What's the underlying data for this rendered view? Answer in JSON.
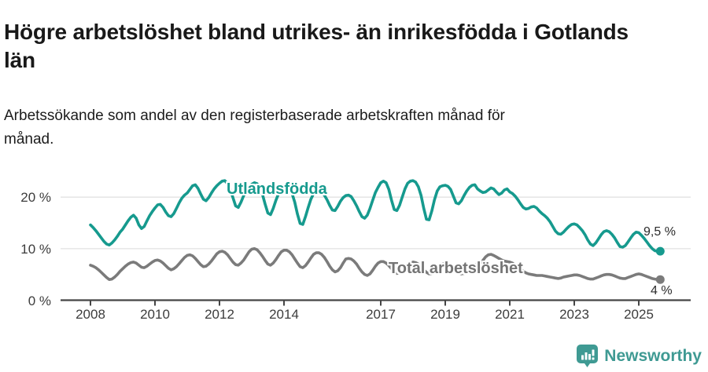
{
  "header": {
    "title": "Högre arbetslöshet bland utrikes- än inrikesfödda i Gotlands län",
    "subtitle": "Arbetssökande som andel av den registerbaserade arbetskraften månad för månad."
  },
  "footer": {
    "brand": "Newsworthy",
    "logo_icon": "bar-chart-speech-bubble-icon",
    "brand_color": "#3f9a93"
  },
  "colors": {
    "accent_teal": "#169a8e",
    "line_gray": "#7b7b7b",
    "axis": "#454545",
    "gridline": "#e2e2e2",
    "text_dark": "#191919"
  },
  "chart_data": {
    "type": "line",
    "title": "Högre arbetslöshet bland utrikes- än inrikesfödda i Gotlands län",
    "subtitle": "Arbetssökande som andel av den registerbaserade arbetskraften månad för månad.",
    "unit": "%",
    "x_start_year": 2008,
    "x_interval": "monthly",
    "x_end_label_period": "2025",
    "grid": "horizontal",
    "legend_position": "inline-labels",
    "ylim": [
      0,
      24.5
    ],
    "y_tick_values": [
      0,
      10,
      20
    ],
    "y_ticks": [
      "0 %",
      "10 %",
      "20 %"
    ],
    "y_grid_values": [
      10,
      20
    ],
    "x_tick_years": [
      2008,
      2010,
      2012,
      2014,
      2017,
      2019,
      2021,
      2023,
      2025
    ],
    "x_ticks": [
      "2008",
      "2010",
      "2012",
      "2014",
      "2017",
      "2019",
      "2021",
      "2023",
      "2025"
    ],
    "series": [
      {
        "name": "Utlandsfödda",
        "label_text": "Utlandsfödda",
        "end_label": "9,5 %",
        "end_value": 9.5,
        "color": "#169a8e",
        "values": [
          14.6,
          14.1,
          13.5,
          12.8,
          12.1,
          11.4,
          10.9,
          10.7,
          11.1,
          11.7,
          12.4,
          13.2,
          13.8,
          14.6,
          15.4,
          16.1,
          16.5,
          15.9,
          14.6,
          13.9,
          14.3,
          15.4,
          16.4,
          17.2,
          17.9,
          18.5,
          18.6,
          18.0,
          17.1,
          16.4,
          16.2,
          16.8,
          17.8,
          18.9,
          19.8,
          20.4,
          20.8,
          21.5,
          22.2,
          22.4,
          21.7,
          20.6,
          19.6,
          19.3,
          19.9,
          20.8,
          21.6,
          22.2,
          22.7,
          23.1,
          23.2,
          22.6,
          21.5,
          19.9,
          18.3,
          18.0,
          19.0,
          20.3,
          21.4,
          22.1,
          22.5,
          22.8,
          22.6,
          21.8,
          20.5,
          18.6,
          16.9,
          16.6,
          17.8,
          19.4,
          20.7,
          21.6,
          22.0,
          22.1,
          21.7,
          20.7,
          19.0,
          16.7,
          14.9,
          14.7,
          16.2,
          18.0,
          19.6,
          20.7,
          21.2,
          21.3,
          20.9,
          20.4,
          19.5,
          18.4,
          17.5,
          17.4,
          18.2,
          19.2,
          19.9,
          20.3,
          20.4,
          20.1,
          19.3,
          18.3,
          17.2,
          16.2,
          15.9,
          16.5,
          17.8,
          19.4,
          20.9,
          21.9,
          22.8,
          23.1,
          22.8,
          21.5,
          19.4,
          17.6,
          17.4,
          18.4,
          20.0,
          21.6,
          22.7,
          23.1,
          23.2,
          22.9,
          22.0,
          20.3,
          17.8,
          15.7,
          15.6,
          17.3,
          19.5,
          21.2,
          22.0,
          22.2,
          22.3,
          22.1,
          21.5,
          20.2,
          18.9,
          18.7,
          19.3,
          20.3,
          21.2,
          21.9,
          22.3,
          22.4,
          21.6,
          21.2,
          20.9,
          21.0,
          21.4,
          21.8,
          21.6,
          21.0,
          20.5,
          20.8,
          21.4,
          21.6,
          21.0,
          20.7,
          20.2,
          19.5,
          18.7,
          18.0,
          17.7,
          17.8,
          18.1,
          18.2,
          17.9,
          17.3,
          16.8,
          16.4,
          15.9,
          15.2,
          14.3,
          13.4,
          12.9,
          12.8,
          13.2,
          13.8,
          14.3,
          14.7,
          14.8,
          14.6,
          14.1,
          13.5,
          12.7,
          11.7,
          10.9,
          10.6,
          11.1,
          11.9,
          12.7,
          13.3,
          13.5,
          13.3,
          12.8,
          12.1,
          11.2,
          10.4,
          10.3,
          10.6,
          11.3,
          12.1,
          12.8,
          13.2,
          13.1,
          12.6,
          12.0,
          11.3,
          10.6,
          10.0,
          9.6,
          9.5,
          9.5
        ]
      },
      {
        "name": "Total arbetslöshet",
        "label_text": "Total arbetslöshet",
        "end_label": "4 %",
        "end_value": 4.0,
        "color": "#7b7b7b",
        "values": [
          6.8,
          6.6,
          6.3,
          5.9,
          5.4,
          4.9,
          4.4,
          4.0,
          4.1,
          4.5,
          5.0,
          5.6,
          6.1,
          6.6,
          7.0,
          7.3,
          7.4,
          7.2,
          6.8,
          6.4,
          6.3,
          6.6,
          7.0,
          7.4,
          7.7,
          7.8,
          7.6,
          7.2,
          6.7,
          6.2,
          5.9,
          6.1,
          6.5,
          7.1,
          7.7,
          8.3,
          8.7,
          8.8,
          8.6,
          8.1,
          7.5,
          6.9,
          6.5,
          6.6,
          7.0,
          7.6,
          8.3,
          9.0,
          9.4,
          9.5,
          9.3,
          8.8,
          8.1,
          7.4,
          6.9,
          6.8,
          7.2,
          7.8,
          8.6,
          9.4,
          9.9,
          10.0,
          9.8,
          9.2,
          8.5,
          7.7,
          7.0,
          6.8,
          7.2,
          7.9,
          8.7,
          9.4,
          9.7,
          9.7,
          9.4,
          8.8,
          8.0,
          7.2,
          6.5,
          6.3,
          6.7,
          7.4,
          8.2,
          8.9,
          9.2,
          9.2,
          8.9,
          8.3,
          7.5,
          6.6,
          5.9,
          5.5,
          5.7,
          6.3,
          7.2,
          8.0,
          8.1,
          8.0,
          7.6,
          7.0,
          6.2,
          5.5,
          5.0,
          4.8,
          5.1,
          5.8,
          6.6,
          7.2,
          7.5,
          7.5,
          7.2,
          6.7,
          6.1,
          5.5,
          5.2,
          5.3,
          5.7,
          6.2,
          6.8,
          7.2,
          7.4,
          7.3,
          7.0,
          6.5,
          5.9,
          5.4,
          5.1,
          5.2,
          5.6,
          6.1,
          6.6,
          7.0,
          7.1,
          7.0,
          6.7,
          6.2,
          5.7,
          5.3,
          5.1,
          5.2,
          5.6,
          6.1,
          6.6,
          6.9,
          7.0,
          7.1,
          7.7,
          8.4,
          8.8,
          8.9,
          8.7,
          8.4,
          8.1,
          7.8,
          7.6,
          7.5,
          7.4,
          7.2,
          6.8,
          6.4,
          6.0,
          5.6,
          5.3,
          5.1,
          5.0,
          4.9,
          4.8,
          4.8,
          4.8,
          4.7,
          4.6,
          4.5,
          4.4,
          4.3,
          4.2,
          4.3,
          4.5,
          4.6,
          4.7,
          4.8,
          4.9,
          4.9,
          4.8,
          4.6,
          4.4,
          4.2,
          4.1,
          4.1,
          4.3,
          4.5,
          4.7,
          4.9,
          5.0,
          5.0,
          4.9,
          4.7,
          4.5,
          4.3,
          4.2,
          4.2,
          4.4,
          4.6,
          4.8,
          5.0,
          5.1,
          5.0,
          4.8,
          4.6,
          4.4,
          4.2,
          4.1,
          4.0,
          4.0
        ]
      }
    ]
  }
}
